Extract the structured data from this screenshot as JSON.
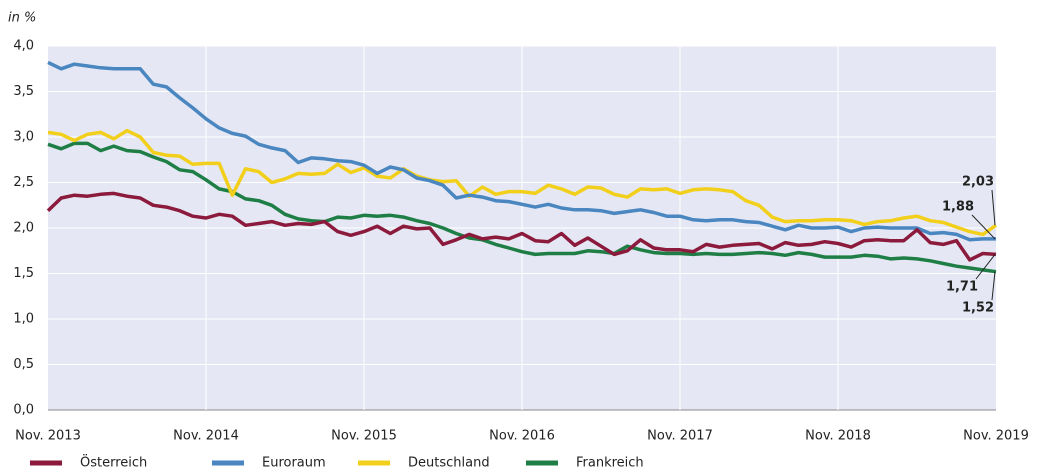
{
  "chart_data": {
    "type": "line",
    "y_label": "in %",
    "categories": [
      "Nov. 2013",
      null,
      null,
      null,
      null,
      null,
      null,
      null,
      null,
      null,
      null,
      null,
      "Nov. 2014",
      null,
      null,
      null,
      null,
      null,
      null,
      null,
      null,
      null,
      null,
      null,
      "Nov. 2015",
      null,
      null,
      null,
      null,
      null,
      null,
      null,
      null,
      null,
      null,
      null,
      "Nov. 2016",
      null,
      null,
      null,
      null,
      null,
      null,
      null,
      null,
      null,
      null,
      null,
      "Nov. 2017",
      null,
      null,
      null,
      null,
      null,
      null,
      null,
      null,
      null,
      null,
      null,
      "Nov. 2018",
      null,
      null,
      null,
      null,
      null,
      null,
      null,
      null,
      null,
      null,
      null,
      "Nov. 2019"
    ],
    "ylim": [
      0,
      4
    ],
    "yticks": [
      {
        "value": 0,
        "label": "0,0"
      },
      {
        "value": 0.5,
        "label": "0,5"
      },
      {
        "value": 1,
        "label": "1,0"
      },
      {
        "value": 1.5,
        "label": "1,5"
      },
      {
        "value": 2,
        "label": "2,0"
      },
      {
        "value": 2.5,
        "label": "2,5"
      },
      {
        "value": 3,
        "label": "3,0"
      },
      {
        "value": 3.5,
        "label": "3,5"
      },
      {
        "value": 4,
        "label": "4,0"
      }
    ],
    "grid": true,
    "legend": "bottom",
    "series": [
      {
        "name": "Österreich",
        "color": "#8b1a3c",
        "values": [
          2.19,
          2.33,
          2.36,
          2.35,
          2.37,
          2.38,
          2.35,
          2.33,
          2.25,
          2.23,
          2.19,
          2.13,
          2.11,
          2.15,
          2.13,
          2.03,
          2.05,
          2.07,
          2.03,
          2.05,
          2.04,
          2.07,
          1.96,
          1.92,
          1.96,
          2.02,
          1.94,
          2.02,
          1.99,
          2.0,
          1.82,
          1.87,
          1.93,
          1.88,
          1.9,
          1.88,
          1.94,
          1.86,
          1.85,
          1.94,
          1.81,
          1.89,
          1.8,
          1.71,
          1.75,
          1.87,
          1.78,
          1.76,
          1.76,
          1.74,
          1.82,
          1.79,
          1.81,
          1.82,
          1.83,
          1.77,
          1.84,
          1.81,
          1.82,
          1.85,
          1.83,
          1.79,
          1.86,
          1.87,
          1.86,
          1.86,
          1.98,
          1.84,
          1.82,
          1.86,
          1.65,
          1.72,
          1.71
        ],
        "value_labels": [
          null,
          null,
          null,
          null,
          null,
          null,
          null,
          null,
          null,
          null,
          null,
          null,
          null,
          null,
          null,
          null,
          null,
          null,
          null,
          null,
          null,
          null,
          null,
          null,
          null,
          null,
          null,
          null,
          null,
          null,
          null,
          null,
          null,
          null,
          null,
          null,
          null,
          null,
          null,
          null,
          null,
          null,
          null,
          null,
          null,
          null,
          null,
          null,
          null,
          null,
          null,
          null,
          null,
          null,
          null,
          null,
          null,
          null,
          null,
          null,
          null,
          null,
          null,
          null,
          null,
          null,
          null,
          null,
          null,
          null,
          null,
          null,
          "1,71"
        ]
      },
      {
        "name": "Euroraum",
        "color": "#4a86c0",
        "values": [
          3.82,
          3.75,
          3.8,
          3.78,
          3.76,
          3.75,
          3.75,
          3.75,
          3.58,
          3.55,
          3.43,
          3.32,
          3.2,
          3.1,
          3.04,
          3.01,
          2.92,
          2.88,
          2.85,
          2.72,
          2.77,
          2.76,
          2.74,
          2.73,
          2.69,
          2.6,
          2.67,
          2.64,
          2.55,
          2.52,
          2.47,
          2.33,
          2.36,
          2.34,
          2.3,
          2.29,
          2.26,
          2.23,
          2.26,
          2.22,
          2.2,
          2.2,
          2.19,
          2.16,
          2.18,
          2.2,
          2.17,
          2.13,
          2.13,
          2.09,
          2.08,
          2.09,
          2.09,
          2.07,
          2.06,
          2.02,
          1.98,
          2.03,
          2.0,
          2.0,
          2.01,
          1.96,
          2.0,
          2.01,
          2.0,
          2.0,
          2.0,
          1.94,
          1.95,
          1.93,
          1.87,
          1.88,
          1.88
        ],
        "value_labels": [
          null,
          null,
          null,
          null,
          null,
          null,
          null,
          null,
          null,
          null,
          null,
          null,
          null,
          null,
          null,
          null,
          null,
          null,
          null,
          null,
          null,
          null,
          null,
          null,
          null,
          null,
          null,
          null,
          null,
          null,
          null,
          null,
          null,
          null,
          null,
          null,
          null,
          null,
          null,
          null,
          null,
          null,
          null,
          null,
          null,
          null,
          null,
          null,
          null,
          null,
          null,
          null,
          null,
          null,
          null,
          null,
          null,
          null,
          null,
          null,
          null,
          null,
          null,
          null,
          null,
          null,
          null,
          null,
          null,
          null,
          null,
          null,
          "1,88"
        ]
      },
      {
        "name": "Deutschland",
        "color": "#f2cf1b",
        "values": [
          3.05,
          3.03,
          2.96,
          3.03,
          3.05,
          2.98,
          3.07,
          3.0,
          2.83,
          2.8,
          2.79,
          2.7,
          2.71,
          2.71,
          2.36,
          2.65,
          2.62,
          2.5,
          2.54,
          2.6,
          2.59,
          2.6,
          2.7,
          2.61,
          2.66,
          2.57,
          2.55,
          2.65,
          2.57,
          2.53,
          2.51,
          2.52,
          2.35,
          2.45,
          2.37,
          2.4,
          2.4,
          2.38,
          2.47,
          2.43,
          2.37,
          2.45,
          2.44,
          2.37,
          2.34,
          2.43,
          2.42,
          2.43,
          2.38,
          2.42,
          2.43,
          2.42,
          2.4,
          2.3,
          2.25,
          2.12,
          2.07,
          2.08,
          2.08,
          2.09,
          2.09,
          2.08,
          2.04,
          2.07,
          2.08,
          2.11,
          2.13,
          2.08,
          2.06,
          2.01,
          1.96,
          1.93,
          2.03
        ],
        "value_labels": [
          null,
          null,
          null,
          null,
          null,
          null,
          null,
          null,
          null,
          null,
          null,
          null,
          null,
          null,
          null,
          null,
          null,
          null,
          null,
          null,
          null,
          null,
          null,
          null,
          null,
          null,
          null,
          null,
          null,
          null,
          null,
          null,
          null,
          null,
          null,
          null,
          null,
          null,
          null,
          null,
          null,
          null,
          null,
          null,
          null,
          null,
          null,
          null,
          null,
          null,
          null,
          null,
          null,
          null,
          null,
          null,
          null,
          null,
          null,
          null,
          null,
          null,
          null,
          null,
          null,
          null,
          null,
          null,
          null,
          null,
          null,
          null,
          "2,03"
        ]
      },
      {
        "name": "Frankreich",
        "color": "#1f7e45",
        "values": [
          2.92,
          2.87,
          2.93,
          2.93,
          2.85,
          2.9,
          2.85,
          2.84,
          2.78,
          2.73,
          2.64,
          2.62,
          2.53,
          2.43,
          2.4,
          2.32,
          2.3,
          2.25,
          2.15,
          2.1,
          2.08,
          2.07,
          2.12,
          2.11,
          2.14,
          2.13,
          2.14,
          2.12,
          2.08,
          2.05,
          2.0,
          1.94,
          1.89,
          1.87,
          1.82,
          1.78,
          1.74,
          1.71,
          1.72,
          1.72,
          1.72,
          1.75,
          1.74,
          1.72,
          1.8,
          1.76,
          1.73,
          1.72,
          1.72,
          1.71,
          1.72,
          1.71,
          1.71,
          1.72,
          1.73,
          1.72,
          1.7,
          1.73,
          1.71,
          1.68,
          1.68,
          1.68,
          1.7,
          1.69,
          1.66,
          1.67,
          1.66,
          1.64,
          1.61,
          1.58,
          1.56,
          1.54,
          1.52
        ],
        "value_labels": [
          null,
          null,
          null,
          null,
          null,
          null,
          null,
          null,
          null,
          null,
          null,
          null,
          null,
          null,
          null,
          null,
          null,
          null,
          null,
          null,
          null,
          null,
          null,
          null,
          null,
          null,
          null,
          null,
          null,
          null,
          null,
          null,
          null,
          null,
          null,
          null,
          null,
          null,
          null,
          null,
          null,
          null,
          null,
          null,
          null,
          null,
          null,
          null,
          null,
          null,
          null,
          null,
          null,
          null,
          null,
          null,
          null,
          null,
          null,
          null,
          null,
          null,
          null,
          null,
          null,
          null,
          null,
          null,
          null,
          null,
          null,
          null,
          "1,52"
        ]
      }
    ]
  }
}
